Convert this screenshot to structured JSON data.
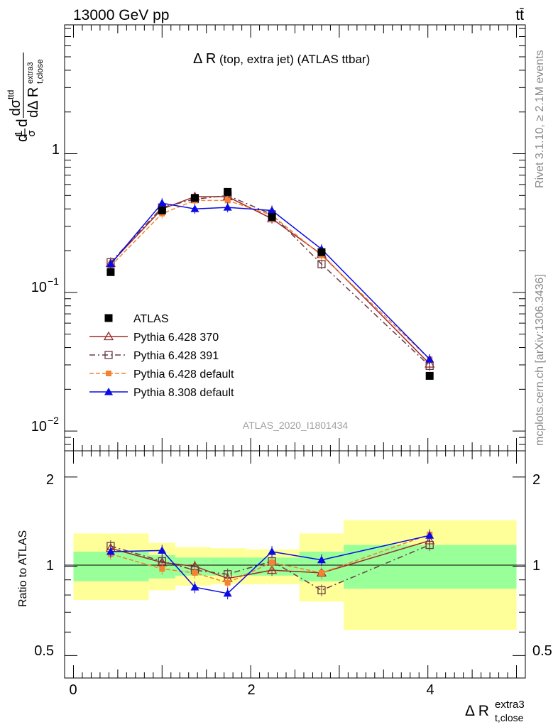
{
  "header": {
    "energy_label": "13000 GeV pp",
    "process_label": "tt̄",
    "plot_title_main": "Δ R",
    "plot_title_rest": " (top, extra jet) (ATLAS ttbar)",
    "analysis_id": "ATLAS_2020_I1801434",
    "rivet_label": "Rivet 3.1.10, ≥ 2.1M events",
    "mcplots_label": "mcplots.cern.ch [arXiv:1306.3436]"
  },
  "axes": {
    "ylabel_main_top": "dσ",
    "ylabel_main_top_sup": "ttd",
    "ylabel_main_prefix": "d",
    "ylabel_main_frac_num": "1",
    "ylabel_main_frac_den": "σ",
    "ylabel_main_mid": "d",
    "ylabel_main_bottom": "dΔ R",
    "ylabel_main_bottom_sub": "t,close",
    "ylabel_main_bottom_sup": "extra3",
    "ylabel_ratio": "Ratio to ATLAS",
    "xlabel_main": "Δ R",
    "xlabel_sub": "t,close",
    "xlabel_sup": "extra3",
    "main_yticks": [
      {
        "base": "1",
        "exp": ""
      },
      {
        "base": "10",
        "exp": "−1"
      },
      {
        "base": "10",
        "exp": "−2"
      }
    ],
    "ratio_yticks": [
      "2",
      "1",
      "0.5"
    ],
    "xticks": [
      "0",
      "2",
      "4"
    ]
  },
  "chart_data": {
    "type": "line",
    "x_range": [
      -0.1,
      5.1
    ],
    "main_y_range": [
      0.0072,
      8.5
    ],
    "main_y_scale": "log",
    "ratio_y_range": [
      0.42,
      2.45
    ],
    "ratio_y_scale": "log",
    "grid": false,
    "legend_placement": "left-middle",
    "bins": [
      [
        0,
        0.85
      ],
      [
        0.85,
        1.15
      ],
      [
        1.15,
        1.55
      ],
      [
        1.55,
        1.95
      ],
      [
        1.95,
        2.55
      ],
      [
        2.55,
        3.05
      ],
      [
        3.05,
        5.0
      ]
    ],
    "x": [
      0.42,
      1.0,
      1.37,
      1.74,
      2.24,
      2.8,
      4.02
    ],
    "atlas": {
      "name": "ATLAS",
      "values": [
        0.14,
        0.39,
        0.48,
        0.53,
        0.35,
        0.195,
        0.025
      ],
      "ratio_band_inner": [
        [
          0.89,
          1.12
        ],
        [
          0.91,
          1.09
        ],
        [
          0.93,
          1.07
        ],
        [
          0.93,
          1.07
        ],
        [
          0.93,
          1.07
        ],
        [
          0.89,
          1.12
        ],
        [
          0.84,
          1.18
        ]
      ],
      "ratio_band_outer": [
        [
          0.77,
          1.29
        ],
        [
          0.83,
          1.2
        ],
        [
          0.86,
          1.16
        ],
        [
          0.87,
          1.15
        ],
        [
          0.87,
          1.14
        ],
        [
          0.76,
          1.29
        ],
        [
          0.61,
          1.43
        ]
      ]
    },
    "series": [
      {
        "name": "Pythia 6.428 370",
        "color": "#9e2a2b",
        "marker": "triangle-open",
        "dash": "",
        "values": [
          0.162,
          0.4,
          0.49,
          0.49,
          0.34,
          0.188,
          0.0305
        ],
        "ratio": [
          1.15,
          1.03,
          1.0,
          0.91,
          0.97,
          0.95,
          1.22
        ]
      },
      {
        "name": "Pythia 6.428 391",
        "color": "#6b3a43",
        "marker": "square-open",
        "dash": "8,4,2,4",
        "values": [
          0.165,
          0.41,
          0.47,
          0.5,
          0.365,
          0.16,
          0.0295
        ],
        "ratio": [
          1.17,
          1.04,
          0.97,
          0.94,
          1.04,
          0.83,
          1.18
        ]
      },
      {
        "name": "Pythia 6.428 default",
        "color": "#f58231",
        "marker": "square-filled",
        "dash": "6,3",
        "values": [
          0.155,
          0.37,
          0.46,
          0.46,
          0.36,
          0.185,
          0.033
        ],
        "ratio": [
          1.1,
          0.98,
          0.95,
          0.88,
          1.03,
          0.95,
          1.28
        ]
      },
      {
        "name": "Pythia 8.308 default",
        "color": "#0a0ae6",
        "marker": "triangle-filled",
        "dash": "",
        "values": [
          0.16,
          0.44,
          0.4,
          0.41,
          0.39,
          0.205,
          0.033
        ],
        "ratio": [
          1.12,
          1.13,
          0.85,
          0.81,
          1.12,
          1.05,
          1.27
        ]
      }
    ]
  }
}
